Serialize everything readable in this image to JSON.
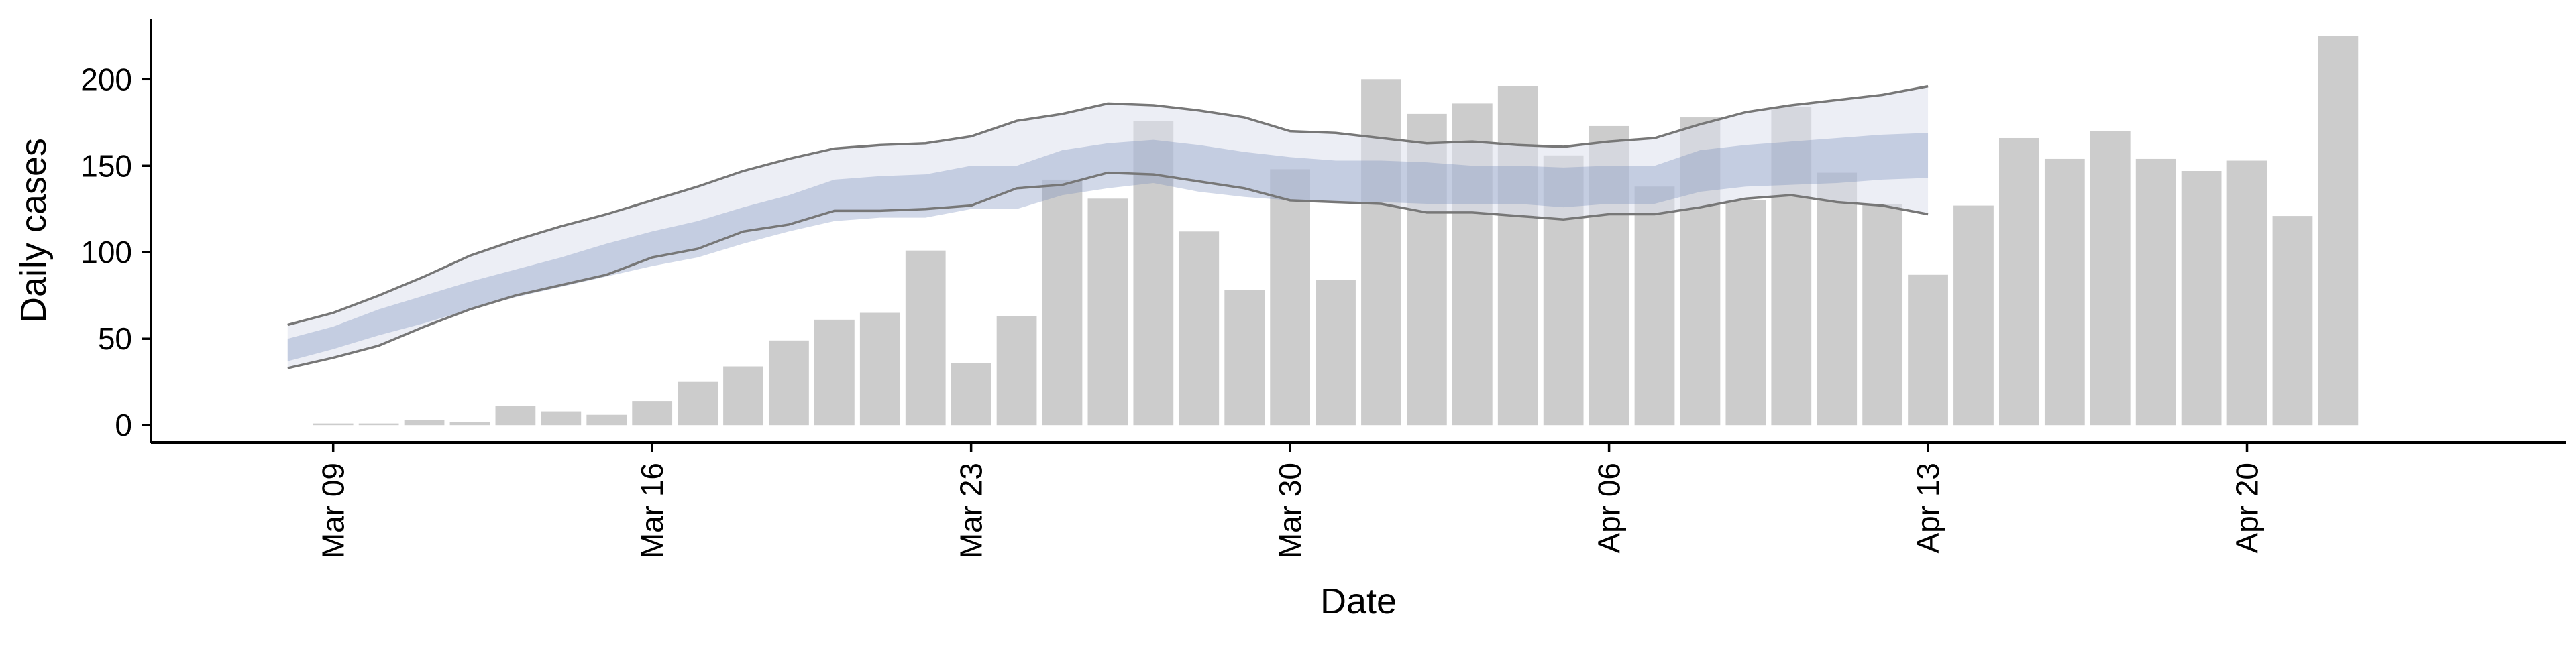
{
  "chart_data": {
    "type": "bar",
    "xlabel": "Date",
    "ylabel": "Daily cases",
    "ylim": [
      -10,
      235
    ],
    "xlim": [
      "2020-03-05",
      "2020-04-27"
    ],
    "grid": false,
    "y_ticks": [
      0,
      50,
      100,
      150,
      200
    ],
    "x_ticks": [
      {
        "date": "2020-03-09",
        "label": "Mar 09"
      },
      {
        "date": "2020-03-16",
        "label": "Mar 16"
      },
      {
        "date": "2020-03-23",
        "label": "Mar 23"
      },
      {
        "date": "2020-03-30",
        "label": "Mar 30"
      },
      {
        "date": "2020-04-06",
        "label": "Apr 06"
      },
      {
        "date": "2020-04-13",
        "label": "Apr 13"
      },
      {
        "date": "2020-04-20",
        "label": "Apr 20"
      }
    ],
    "bars": {
      "color": "#cccccc",
      "dates": [
        "2020-03-09",
        "2020-03-10",
        "2020-03-11",
        "2020-03-12",
        "2020-03-13",
        "2020-03-14",
        "2020-03-15",
        "2020-03-16",
        "2020-03-17",
        "2020-03-18",
        "2020-03-19",
        "2020-03-20",
        "2020-03-21",
        "2020-03-22",
        "2020-03-23",
        "2020-03-24",
        "2020-03-25",
        "2020-03-26",
        "2020-03-27",
        "2020-03-28",
        "2020-03-29",
        "2020-03-30",
        "2020-03-31",
        "2020-04-01",
        "2020-04-02",
        "2020-04-03",
        "2020-04-04",
        "2020-04-05",
        "2020-04-06",
        "2020-04-07",
        "2020-04-08",
        "2020-04-09",
        "2020-04-10",
        "2020-04-11",
        "2020-04-12",
        "2020-04-13",
        "2020-04-14",
        "2020-04-15",
        "2020-04-16",
        "2020-04-17",
        "2020-04-18",
        "2020-04-19",
        "2020-04-20",
        "2020-04-21",
        "2020-04-22"
      ],
      "values": [
        1,
        1,
        3,
        2,
        11,
        8,
        6,
        14,
        25,
        34,
        49,
        61,
        65,
        101,
        36,
        63,
        142,
        131,
        176,
        112,
        78,
        148,
        84,
        200,
        180,
        186,
        196,
        156,
        173,
        138,
        178,
        130,
        184,
        146,
        128,
        87,
        127,
        166,
        154,
        170,
        154,
        147,
        153,
        121,
        225
      ]
    },
    "estimate": {
      "band_color": "#7c8fbe",
      "outer_fill": "#dde0ec",
      "line_color": "#777777",
      "dates": [
        "2020-03-08",
        "2020-03-09",
        "2020-03-10",
        "2020-03-11",
        "2020-03-12",
        "2020-03-13",
        "2020-03-14",
        "2020-03-15",
        "2020-03-16",
        "2020-03-17",
        "2020-03-18",
        "2020-03-19",
        "2020-03-20",
        "2020-03-21",
        "2020-03-22",
        "2020-03-23",
        "2020-03-24",
        "2020-03-25",
        "2020-03-26",
        "2020-03-27",
        "2020-03-28",
        "2020-03-29",
        "2020-03-30",
        "2020-03-31",
        "2020-04-01",
        "2020-04-02",
        "2020-04-03",
        "2020-04-04",
        "2020-04-05",
        "2020-04-06",
        "2020-04-07",
        "2020-04-08",
        "2020-04-09",
        "2020-04-10",
        "2020-04-11",
        "2020-04-12",
        "2020-04-13"
      ],
      "upper": [
        58,
        65,
        75,
        86,
        98,
        107,
        115,
        122,
        130,
        138,
        147,
        154,
        160,
        162,
        163,
        167,
        176,
        180,
        186,
        185,
        182,
        178,
        170,
        169,
        166,
        163,
        164,
        162,
        161,
        164,
        166,
        174,
        181,
        185,
        188,
        191,
        196
      ],
      "inner_upper": [
        50,
        57,
        67,
        75,
        83,
        90,
        97,
        105,
        112,
        118,
        126,
        133,
        142,
        144,
        145,
        150,
        150,
        159,
        163,
        165,
        162,
        158,
        155,
        153,
        153,
        152,
        150,
        150,
        149,
        150,
        150,
        159,
        162,
        164,
        166,
        168,
        169
      ],
      "inner_lower": [
        37,
        44,
        52,
        59,
        67,
        74,
        80,
        86,
        92,
        97,
        105,
        112,
        118,
        120,
        120,
        125,
        125,
        133,
        137,
        140,
        135,
        132,
        130,
        129,
        129,
        128,
        128,
        128,
        126,
        128,
        128,
        135,
        138,
        139,
        140,
        142,
        143
      ],
      "lower": [
        33,
        39,
        46,
        57,
        67,
        75,
        81,
        87,
        97,
        102,
        112,
        116,
        124,
        124,
        125,
        127,
        137,
        139,
        146,
        145,
        141,
        137,
        130,
        129,
        128,
        123,
        123,
        121,
        119,
        122,
        122,
        126,
        131,
        133,
        129,
        127,
        122
      ]
    }
  }
}
